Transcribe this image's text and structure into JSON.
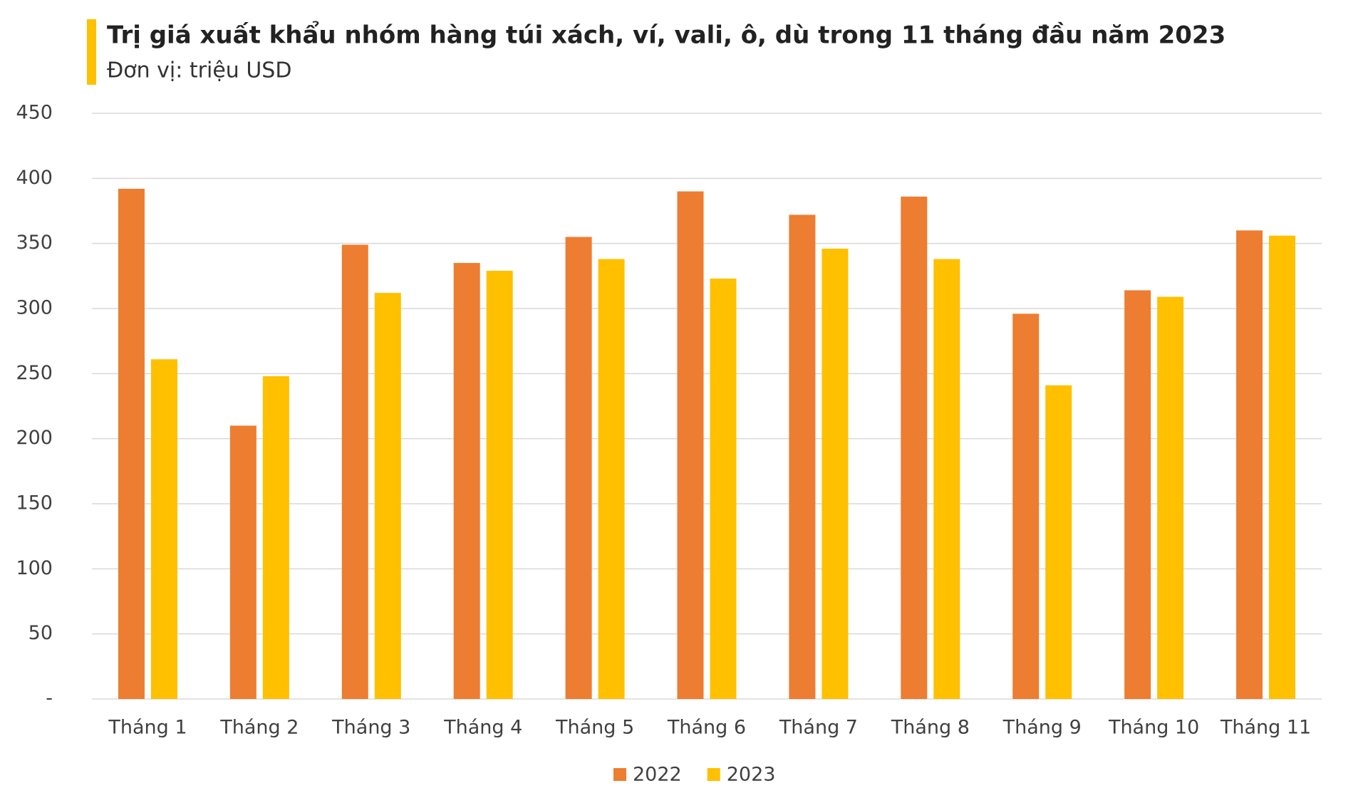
{
  "chart_data": {
    "type": "bar",
    "title": "Trị giá xuất khẩu nhóm hàng túi xách, ví, vali, ô, dù trong 11 tháng đầu năm 2023",
    "subtitle": "Đơn vị: triệu USD",
    "categories": [
      "Tháng 1",
      "Tháng 2",
      "Tháng 3",
      "Tháng 4",
      "Tháng 5",
      "Tháng 6",
      "Tháng 7",
      "Tháng 8",
      "Tháng 9",
      "Tháng 10",
      "Tháng 11"
    ],
    "series": [
      {
        "name": "2022",
        "color": "#ED7D31",
        "values": [
          392,
          210,
          349,
          335,
          355,
          390,
          372,
          386,
          296,
          314,
          360
        ]
      },
      {
        "name": "2023",
        "color": "#FFC000",
        "values": [
          261,
          248,
          312,
          329,
          338,
          323,
          346,
          338,
          241,
          309,
          356
        ]
      }
    ],
    "ylim": [
      0,
      450
    ],
    "yticks": [
      {
        "value": 0,
        "label": "-"
      },
      50,
      100,
      150,
      200,
      250,
      300,
      350,
      400,
      450
    ],
    "grid": true,
    "legend": "bottom"
  }
}
